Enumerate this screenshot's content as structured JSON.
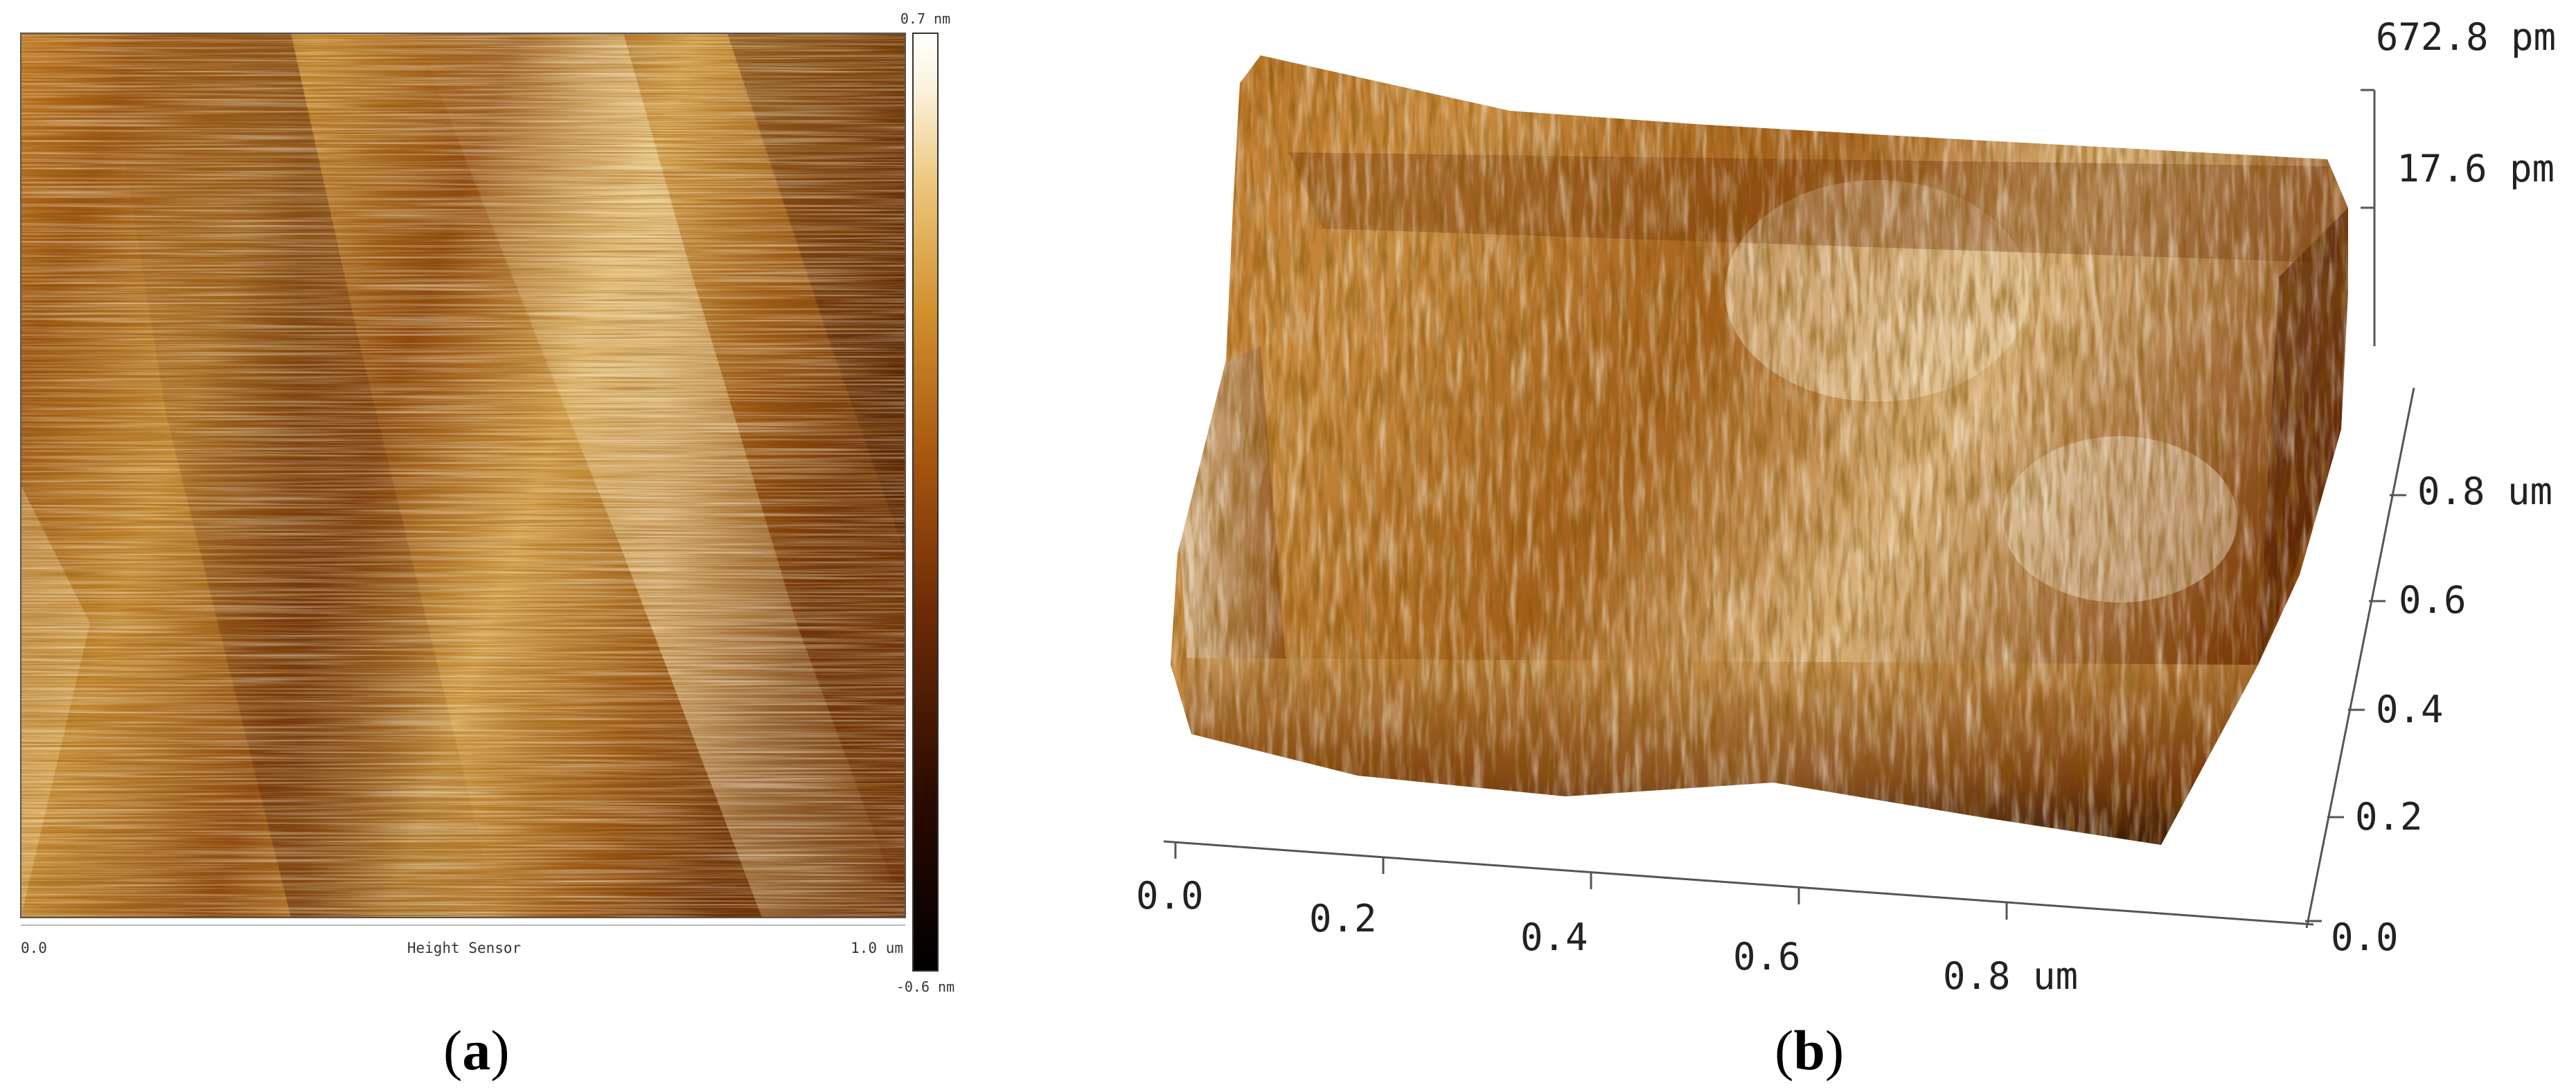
{
  "panel_a": {
    "scale_max": "0.7 nm",
    "scale_min": "-0.6 nm",
    "axis_start": "0.0",
    "channel": "Height Sensor",
    "axis_end": "1.0 um",
    "colormap": [
      "#000000",
      "#2a0a00",
      "#6b2a05",
      "#a9570f",
      "#d08f2c",
      "#ecc77d",
      "#fbf3dc",
      "#ffffff"
    ]
  },
  "panel_b": {
    "z_max": "672.8 pm",
    "z_mid": "17.6 pm",
    "x_ticks": [
      "0.0",
      "0.2",
      "0.4",
      "0.6",
      "0.8 um"
    ],
    "y_ticks": [
      "0.0",
      "0.2",
      "0.4",
      "0.6",
      "0.8 um"
    ]
  },
  "captions": {
    "a_open": "(",
    "a_letter": "a",
    "a_close": ")",
    "b_open": "(",
    "b_letter": "b",
    "b_close": ")"
  }
}
